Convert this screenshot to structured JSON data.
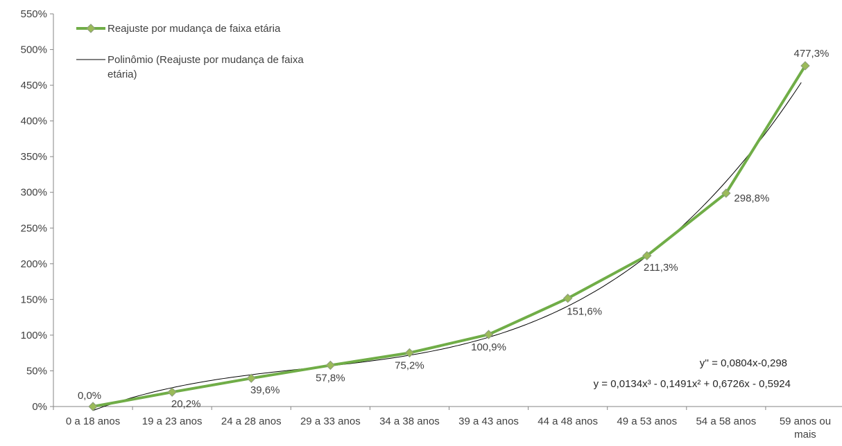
{
  "chart_data": {
    "type": "line",
    "title": "",
    "categories": [
      "0 a 18 anos",
      "19 a 23 anos",
      "24 a 28 anos",
      "29 a 33 anos",
      "34 a 38 anos",
      "39 a 43 anos",
      "44 a 48 anos",
      "49 a 53 anos",
      "54 a 58 anos",
      "59 anos ou mais"
    ],
    "ylim": [
      0,
      550
    ],
    "y_ticks": [
      "0%",
      "50%",
      "100%",
      "150%",
      "200%",
      "250%",
      "300%",
      "350%",
      "400%",
      "450%",
      "500%",
      "550%"
    ],
    "series": [
      {
        "name": "Reajuste por mudança de faixa etária",
        "values": [
          0.0,
          20.2,
          39.6,
          57.8,
          75.2,
          100.9,
          151.6,
          211.3,
          298.8,
          477.3
        ],
        "labels": [
          "0,0%",
          "20,2%",
          "39,6%",
          "57,8%",
          "75,2%",
          "100,9%",
          "151,6%",
          "211,3%",
          "298,8%",
          "477,3%"
        ],
        "color": "#70ad47",
        "marker_color": "#9bbb59"
      }
    ],
    "trendline": {
      "name": "Polinômio (Reajuste por mudança de faixa etária)",
      "legend_lines": [
        "Polinômio (Reajuste por mudança de faixa",
        "etária)"
      ],
      "type": "polynomial",
      "coefficients": [
        0.0134,
        -0.1491,
        0.6726,
        -0.5924
      ],
      "color": "#000000"
    },
    "equations": [
      "y'' = 0,0804x-0,298",
      "y = 0,0134x³ - 0,1491x² + 0,6726x - 0,5924"
    ],
    "grid": false,
    "legend": "top-left"
  }
}
